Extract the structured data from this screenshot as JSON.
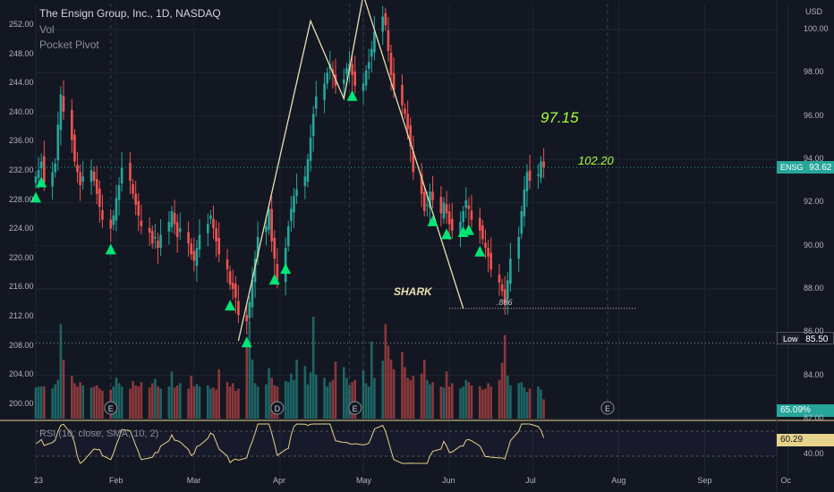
{
  "header": {
    "title": "The Ensign Group, Inc., 1D, NASDAQ",
    "vol_label": "Vol",
    "indicator_label": "Pocket Pivot",
    "currency": "USD"
  },
  "rsi": {
    "label": "RSI (10, close, SMA, 10, 2)",
    "value_badge": "60.29",
    "tick": "40.00"
  },
  "price_badges": {
    "ensg_symbol": "ENSG",
    "ensg_price": "93.62",
    "low_label": "Low",
    "low_price": "85.50",
    "vol_pct": "65.09%"
  },
  "annotations": {
    "target1": "97.15",
    "target2": "102.20",
    "pattern": "SHARK",
    "fib": ".886"
  },
  "event_markers": [
    {
      "letter": "E",
      "date": "Feb"
    },
    {
      "letter": "D",
      "date": "Apr"
    },
    {
      "letter": "E",
      "date": "May"
    },
    {
      "letter": "E",
      "date": "Jul"
    }
  ],
  "colors": {
    "background": "#131722",
    "up": "#26a69a",
    "down": "#ef5350",
    "signal": "#00e676",
    "annotation": "#a8ff3e",
    "pattern_line": "#e8e0b0",
    "rsi_line": "#e6d28a"
  },
  "chart_data": {
    "type": "candlestick",
    "title": "The Ensign Group, Inc., 1D, NASDAQ",
    "left_axis": {
      "ticks": [
        "252.00",
        "248.00",
        "244.00",
        "240.00",
        "236.00",
        "232.00",
        "228.00",
        "224.00",
        "220.00",
        "216.00",
        "212.00",
        "208.00",
        "204.00",
        "200.00"
      ]
    },
    "right_axis": {
      "ticks": [
        "100.00",
        "98.00",
        "96.00",
        "94.00",
        "92.00",
        "90.00",
        "88.00",
        "86.00",
        "84.00",
        "82.00"
      ],
      "range": [
        82,
        101.2
      ]
    },
    "x_ticks": [
      "23",
      "Feb",
      "Mar",
      "Apr",
      "May",
      "Jun",
      "Jul",
      "Aug",
      "Sep",
      "Oc"
    ],
    "levels": {
      "last": 93.62,
      "low": 85.5,
      "fib_886": 87.1
    },
    "shark_pattern": [
      {
        "date": "Mar 17",
        "price": 85.6
      },
      {
        "date": "Apr 12",
        "price": 100.4
      },
      {
        "date": "Apr 24",
        "price": 96.8
      },
      {
        "date": "May 1",
        "price": 101.6
      },
      {
        "date": "Jun 6",
        "price": 87.1
      }
    ],
    "candles": {
      "start": "2023-01-03",
      "close": [
        93.2,
        93.5,
        93.9,
        92.9,
        93.4,
        93.8,
        95.6,
        97.0,
        96.2,
        94.9,
        93.9,
        93.4,
        92.8,
        93.2,
        93.5,
        93.0,
        92.4,
        91.8,
        91.2,
        90.8,
        91.4,
        92.2,
        92.8,
        93.6,
        93.0,
        92.4,
        91.9,
        91.4,
        90.9,
        90.6,
        90.1,
        90.4,
        89.9,
        90.5,
        91.1,
        91.6,
        91.0,
        90.4,
        90.8,
        90.1,
        89.6,
        89.3,
        89.9,
        90.5,
        91.0,
        91.4,
        90.8,
        90.2,
        89.6,
        88.9,
        88.2,
        88.0,
        87.6,
        86.8,
        86.5,
        87.4,
        88.4,
        89.4,
        90.4,
        90.9,
        91.7,
        90.2,
        89.4,
        88.4,
        89.9,
        90.9,
        91.7,
        92.3,
        92.6,
        93.2,
        94.0,
        95.0,
        96.1,
        96.9,
        97.5,
        98.0,
        98.4,
        98.0,
        97.4,
        97.7,
        98.2,
        98.4,
        97.9,
        97.4,
        97.5,
        98.1,
        98.5,
        99.1,
        99.9,
        100.6,
        100.2,
        99.0,
        97.9,
        97.2,
        96.5,
        96.1,
        95.4,
        94.6,
        93.4,
        92.4,
        91.6,
        91.9,
        92.5,
        92.1,
        91.5,
        92.0,
        91.5,
        91.0,
        90.7,
        91.1,
        91.6,
        92.1,
        91.7,
        91.2,
        90.7,
        90.3,
        89.9,
        89.5,
        88.9,
        88.3,
        87.9,
        87.3,
        88.4,
        89.4,
        90.4,
        91.6,
        92.6,
        93.4,
        93.0,
        93.3,
        93.9,
        93.62
      ],
      "volume": [
        0.29,
        0.3,
        0.3,
        0.3,
        0.28,
        0.32,
        0.36,
        0.88,
        0.55,
        0.4,
        0.33,
        0.3,
        0.34,
        0.31,
        0.29,
        0.3,
        0.31,
        0.28,
        0.26,
        0.27,
        0.3,
        0.38,
        0.33,
        0.3,
        0.28,
        0.35,
        0.31,
        0.3,
        0.34,
        0.29,
        0.33,
        0.37,
        0.3,
        0.28,
        0.3,
        0.44,
        0.29,
        0.31,
        0.33,
        0.28,
        0.4,
        0.3,
        0.32,
        0.3,
        0.31,
        0.28,
        0.29,
        0.27,
        0.46,
        0.34,
        0.3,
        0.33,
        0.26,
        0.28,
        0.74,
        0.9,
        0.55,
        0.33,
        0.3,
        0.32,
        0.47,
        0.38,
        0.31,
        0.3,
        0.35,
        0.34,
        0.42,
        0.36,
        0.55,
        0.49,
        0.32,
        0.43,
        0.95,
        0.41,
        0.38,
        0.3,
        0.34,
        0.36,
        0.53,
        0.48,
        0.38,
        0.31,
        0.34,
        0.36,
        0.45,
        0.33,
        0.3,
        0.72,
        0.38,
        0.54,
        0.88,
        0.68,
        0.55,
        0.46,
        0.62,
        0.48,
        0.38,
        0.36,
        0.4,
        0.42,
        0.55,
        0.36,
        0.32,
        0.34,
        0.3,
        0.29,
        0.44,
        0.3,
        0.33,
        0.28,
        0.3,
        0.36,
        0.34,
        0.31,
        0.3,
        0.27,
        0.28,
        0.33,
        0.3,
        0.36,
        0.52,
        0.78,
        0.4,
        0.31,
        0.33,
        0.34,
        0.29,
        0.25,
        0.28,
        0.3,
        0.27,
        0.18
      ]
    },
    "pocket_pivot_signals": [
      "Jan 3",
      "Jan 5",
      "Jan 30",
      "Mar 14",
      "Mar 20",
      "Mar 30",
      "Apr 3",
      "Apr 27",
      "May 26",
      "May 31",
      "Jun 6",
      "Jun 8",
      "Jun 12"
    ],
    "rsi_range": [
      20,
      80
    ]
  }
}
